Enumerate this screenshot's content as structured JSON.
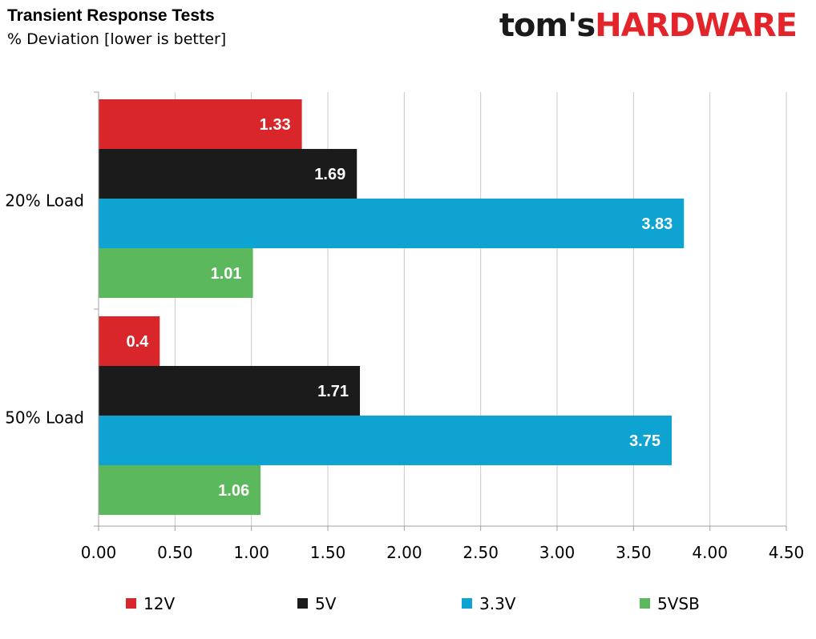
{
  "chart_data": {
    "type": "bar",
    "orientation": "horizontal",
    "title": "Transient Response Tests",
    "subtitle": "% Deviation [lower is better]",
    "categories": [
      "20% Load",
      "50% Load"
    ],
    "series": [
      {
        "name": "12V",
        "color": "#d9262b",
        "values": [
          1.33,
          0.4
        ]
      },
      {
        "name": "5V",
        "color": "#1b1b1b",
        "values": [
          1.69,
          1.71
        ]
      },
      {
        "name": "3.3V",
        "color": "#0ea3d1",
        "values": [
          3.83,
          3.75
        ]
      },
      {
        "name": "5VSB",
        "color": "#5cb85c",
        "values": [
          1.01,
          1.06
        ]
      }
    ],
    "data_labels": [
      [
        "1.33",
        "1.69",
        "3.83",
        "1.01"
      ],
      [
        "0.4",
        "1.71",
        "3.75",
        "1.06"
      ]
    ],
    "xlim": [
      0,
      4.5
    ],
    "x_ticks": [
      "0.00",
      "0.50",
      "1.00",
      "1.50",
      "2.00",
      "2.50",
      "3.00",
      "3.50",
      "4.00",
      "4.50"
    ],
    "grid": true,
    "legend_position": "bottom"
  },
  "logo": {
    "part1": "tom's",
    "part2": "HARDWARE"
  }
}
